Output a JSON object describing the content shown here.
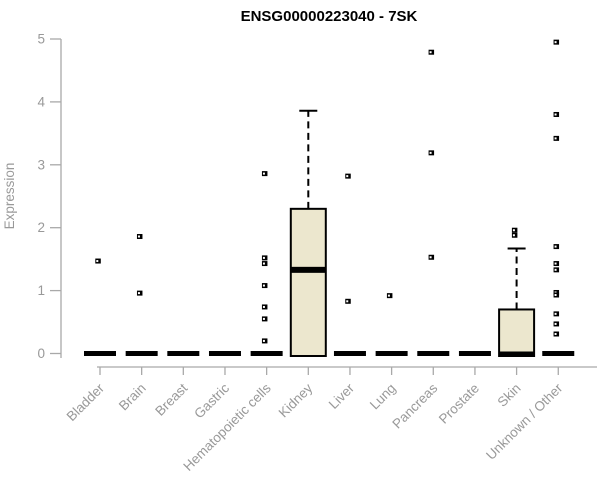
{
  "chart_data": {
    "type": "boxplot",
    "title": "ENSG00000223040 - 7SK",
    "ylabel": "Expression",
    "ylim": [
      0,
      5
    ],
    "yticks": [
      0,
      1,
      2,
      3,
      4,
      5
    ],
    "grid": false,
    "legend": "none",
    "categories": [
      "Bladder",
      "Brain",
      "Breast",
      "Gastric",
      "Hematopoietic cells",
      "Kidney",
      "Liver",
      "Lung",
      "Pancreas",
      "Prostate",
      "Skin",
      "Unknown / Other"
    ],
    "boxes": [
      {
        "category": "Bladder",
        "q1": 0,
        "median": 0,
        "q3": 0,
        "whisker_low": 0,
        "whisker_high": 0,
        "outliers": [
          1.47
        ]
      },
      {
        "category": "Brain",
        "q1": 0,
        "median": 0,
        "q3": 0,
        "whisker_low": 0,
        "whisker_high": 0,
        "outliers": [
          1.86,
          0.96
        ]
      },
      {
        "category": "Breast",
        "q1": 0,
        "median": 0,
        "q3": 0,
        "whisker_low": 0,
        "whisker_high": 0,
        "outliers": []
      },
      {
        "category": "Gastric",
        "q1": 0,
        "median": 0,
        "q3": 0,
        "whisker_low": 0,
        "whisker_high": 0,
        "outliers": []
      },
      {
        "category": "Hematopoietic cells",
        "q1": 0,
        "median": 0,
        "q3": 0,
        "whisker_low": 0,
        "whisker_high": 0,
        "outliers": [
          2.86,
          1.52,
          1.43,
          1.08,
          0.74,
          0.55,
          0.2
        ]
      },
      {
        "category": "Kidney",
        "q1": 0,
        "median": 1.33,
        "q3": 2.3,
        "whisker_low": 0,
        "whisker_high": 3.86,
        "outliers": []
      },
      {
        "category": "Liver",
        "q1": 0,
        "median": 0,
        "q3": 0,
        "whisker_low": 0,
        "whisker_high": 0,
        "outliers": [
          2.82,
          0.83
        ]
      },
      {
        "category": "Lung",
        "q1": 0,
        "median": 0,
        "q3": 0,
        "whisker_low": 0,
        "whisker_high": 0,
        "outliers": [
          0.92
        ]
      },
      {
        "category": "Pancreas",
        "q1": 0,
        "median": 0,
        "q3": 0,
        "whisker_low": 0,
        "whisker_high": 0,
        "outliers": [
          4.79,
          3.19,
          1.53
        ]
      },
      {
        "category": "Prostate",
        "q1": 0,
        "median": 0,
        "q3": 0,
        "whisker_low": 0,
        "whisker_high": 0,
        "outliers": []
      },
      {
        "category": "Skin",
        "q1": 0,
        "median": 0,
        "q3": 0.7,
        "whisker_low": 0,
        "whisker_high": 1.67,
        "outliers": [
          1.88,
          1.96
        ]
      },
      {
        "category": "Unknown / Other",
        "q1": 0,
        "median": 0,
        "q3": 0,
        "whisker_low": 0,
        "whisker_high": 0,
        "outliers": [
          4.95,
          3.8,
          3.42,
          1.7,
          1.43,
          1.33,
          0.97,
          0.93,
          0.63,
          0.47,
          0.31
        ]
      }
    ],
    "colors": {
      "box_fill": "#ECE7CE",
      "box_stroke": "#000000",
      "marker": "#000000",
      "axis_line": "#A9A9A9",
      "tick_label": "#999999",
      "title": "#000000"
    }
  }
}
